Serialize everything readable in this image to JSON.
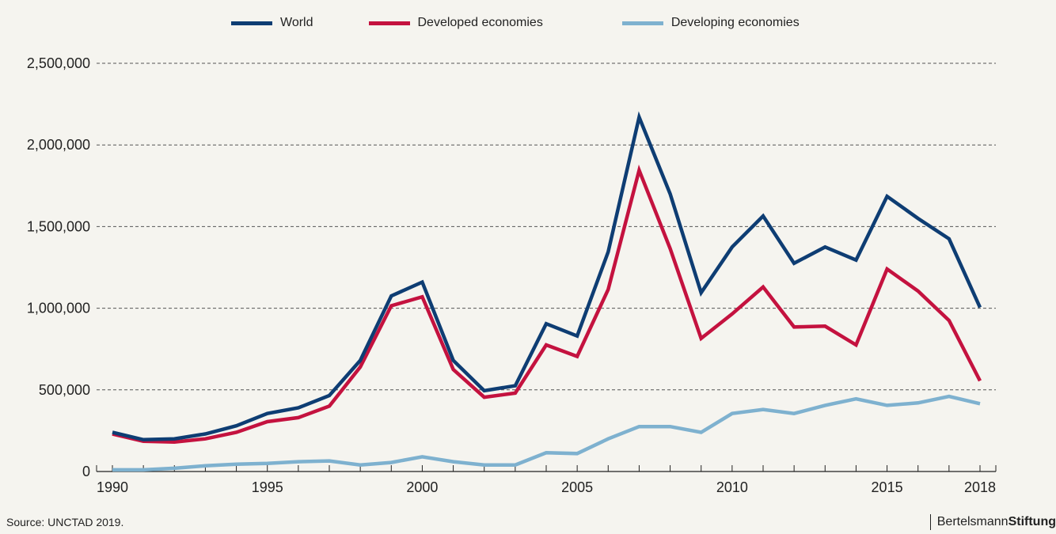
{
  "legend": {
    "world": "World",
    "developed": "Developed economies",
    "developing": "Developing economies"
  },
  "footer": {
    "source": "Source: UNCTAD 2019.",
    "brand_regular": "Bertelsmann",
    "brand_bold": "Stiftung"
  },
  "colors": {
    "world": "#0e3d73",
    "developed": "#c4123f",
    "developing": "#7eb1cf",
    "grid": "#555555",
    "axis": "#222222",
    "background": "#f5f4ef"
  },
  "chart_data": {
    "type": "line",
    "x": [
      1990,
      1991,
      1992,
      1993,
      1994,
      1995,
      1996,
      1997,
      1998,
      1999,
      2000,
      2001,
      2002,
      2003,
      2004,
      2005,
      2006,
      2007,
      2008,
      2009,
      2010,
      2011,
      2012,
      2013,
      2014,
      2015,
      2016,
      2017,
      2018
    ],
    "series": [
      {
        "name": "World",
        "key": "world",
        "values": [
          240000,
          195000,
          200000,
          230000,
          280000,
          355000,
          390000,
          465000,
          680000,
          1075000,
          1160000,
          680000,
          495000,
          525000,
          905000,
          830000,
          1345000,
          2170000,
          1700000,
          1095000,
          1375000,
          1565000,
          1275000,
          1375000,
          1295000,
          1685000,
          1550000,
          1425000,
          1005000
        ]
      },
      {
        "name": "Developed economies",
        "key": "developed",
        "values": [
          230000,
          185000,
          180000,
          200000,
          240000,
          305000,
          330000,
          400000,
          640000,
          1015000,
          1070000,
          625000,
          455000,
          480000,
          775000,
          705000,
          1115000,
          1845000,
          1365000,
          815000,
          965000,
          1130000,
          885000,
          890000,
          775000,
          1240000,
          1105000,
          925000,
          555000
        ]
      },
      {
        "name": "Developing economies",
        "key": "developing",
        "values": [
          10000,
          10000,
          20000,
          35000,
          45000,
          50000,
          60000,
          65000,
          40000,
          55000,
          90000,
          60000,
          40000,
          40000,
          115000,
          110000,
          200000,
          275000,
          275000,
          240000,
          355000,
          380000,
          355000,
          405000,
          445000,
          405000,
          420000,
          460000,
          415000
        ]
      }
    ],
    "xticks": [
      1990,
      1995,
      2000,
      2005,
      2010,
      2015,
      2018
    ],
    "yticks": [
      0,
      500000,
      1000000,
      1500000,
      2000000,
      2500000
    ],
    "ytick_labels": [
      "0",
      "500,000",
      "1,000,000",
      "1,500,000",
      "2,000,000",
      "2,500,000"
    ],
    "xlim": [
      1990,
      2018
    ],
    "ylim": [
      0,
      2500000
    ],
    "grid": true,
    "legend_position": "top"
  }
}
